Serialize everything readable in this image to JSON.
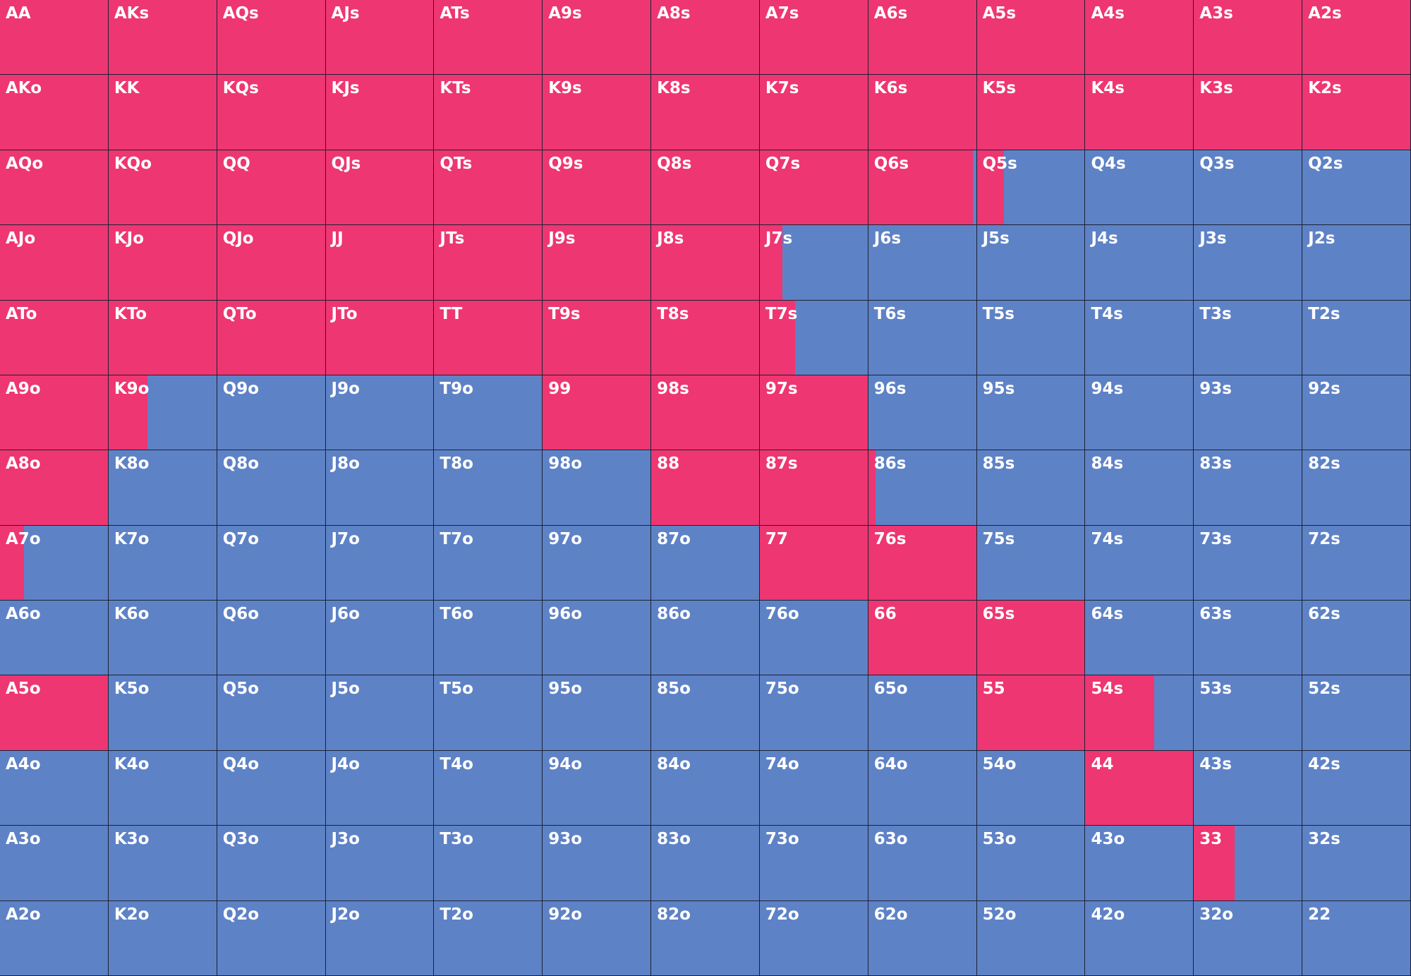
{
  "grid": {
    "colors": {
      "raise": "#ee3672",
      "other": "#5e82c6"
    },
    "labels": [
      [
        "AA",
        "AKs",
        "AQs",
        "AJs",
        "ATs",
        "A9s",
        "A8s",
        "A7s",
        "A6s",
        "A5s",
        "A4s",
        "A3s",
        "A2s"
      ],
      [
        "AKo",
        "KK",
        "KQs",
        "KJs",
        "KTs",
        "K9s",
        "K8s",
        "K7s",
        "K6s",
        "K5s",
        "K4s",
        "K3s",
        "K2s"
      ],
      [
        "AQo",
        "KQo",
        "QQ",
        "QJs",
        "QTs",
        "Q9s",
        "Q8s",
        "Q7s",
        "Q6s",
        "Q5s",
        "Q4s",
        "Q3s",
        "Q2s"
      ],
      [
        "AJo",
        "KJo",
        "QJo",
        "JJ",
        "JTs",
        "J9s",
        "J8s",
        "J7s",
        "J6s",
        "J5s",
        "J4s",
        "J3s",
        "J2s"
      ],
      [
        "ATo",
        "KTo",
        "QTo",
        "JTo",
        "TT",
        "T9s",
        "T8s",
        "T7s",
        "T6s",
        "T5s",
        "T4s",
        "T3s",
        "T2s"
      ],
      [
        "A9o",
        "K9o",
        "Q9o",
        "J9o",
        "T9o",
        "99",
        "98s",
        "97s",
        "96s",
        "95s",
        "94s",
        "93s",
        "92s"
      ],
      [
        "A8o",
        "K8o",
        "Q8o",
        "J8o",
        "T8o",
        "98o",
        "88",
        "87s",
        "86s",
        "85s",
        "84s",
        "83s",
        "82s"
      ],
      [
        "A7o",
        "K7o",
        "Q7o",
        "J7o",
        "T7o",
        "97o",
        "87o",
        "77",
        "76s",
        "75s",
        "74s",
        "73s",
        "72s"
      ],
      [
        "A6o",
        "K6o",
        "Q6o",
        "J6o",
        "T6o",
        "96o",
        "86o",
        "76o",
        "66",
        "65s",
        "64s",
        "63s",
        "62s"
      ],
      [
        "A5o",
        "K5o",
        "Q5o",
        "J5o",
        "T5o",
        "95o",
        "85o",
        "75o",
        "65o",
        "55",
        "54s",
        "53s",
        "52s"
      ],
      [
        "A4o",
        "K4o",
        "Q4o",
        "J4o",
        "T4o",
        "94o",
        "84o",
        "74o",
        "64o",
        "54o",
        "44",
        "43s",
        "42s"
      ],
      [
        "A3o",
        "K3o",
        "Q3o",
        "J3o",
        "T3o",
        "93o",
        "83o",
        "73o",
        "63o",
        "53o",
        "43o",
        "33",
        "32s"
      ],
      [
        "A2o",
        "K2o",
        "Q2o",
        "J2o",
        "T2o",
        "92o",
        "82o",
        "72o",
        "62o",
        "52o",
        "42o",
        "32o",
        "22"
      ]
    ],
    "raise": [
      [
        100,
        100,
        100,
        100,
        100,
        100,
        100,
        100,
        100,
        100,
        100,
        100,
        100
      ],
      [
        100,
        100,
        100,
        100,
        100,
        100,
        100,
        100,
        100,
        100,
        100,
        100,
        100
      ],
      [
        100,
        100,
        100,
        100,
        100,
        100,
        100,
        100,
        97,
        25,
        0,
        0,
        0
      ],
      [
        100,
        100,
        100,
        100,
        100,
        100,
        100,
        21,
        0,
        0,
        0,
        0,
        0
      ],
      [
        100,
        100,
        100,
        100,
        100,
        100,
        100,
        33,
        0,
        0,
        0,
        0,
        0
      ],
      [
        100,
        36,
        0,
        0,
        0,
        100,
        100,
        100,
        0,
        0,
        0,
        0,
        0
      ],
      [
        100,
        0,
        0,
        0,
        0,
        0,
        100,
        100,
        7,
        0,
        0,
        0,
        0
      ],
      [
        22,
        0,
        0,
        0,
        0,
        0,
        0,
        100,
        100,
        0,
        0,
        0,
        0
      ],
      [
        0,
        0,
        0,
        0,
        0,
        0,
        0,
        0,
        100,
        100,
        0,
        0,
        0
      ],
      [
        100,
        0,
        0,
        0,
        0,
        0,
        0,
        0,
        0,
        100,
        64,
        0,
        0
      ],
      [
        0,
        0,
        0,
        0,
        0,
        0,
        0,
        0,
        0,
        0,
        100,
        0,
        0
      ],
      [
        0,
        0,
        0,
        0,
        0,
        0,
        0,
        0,
        0,
        0,
        0,
        38,
        0
      ],
      [
        0,
        0,
        0,
        0,
        0,
        0,
        0,
        0,
        0,
        0,
        0,
        0,
        0
      ]
    ]
  }
}
